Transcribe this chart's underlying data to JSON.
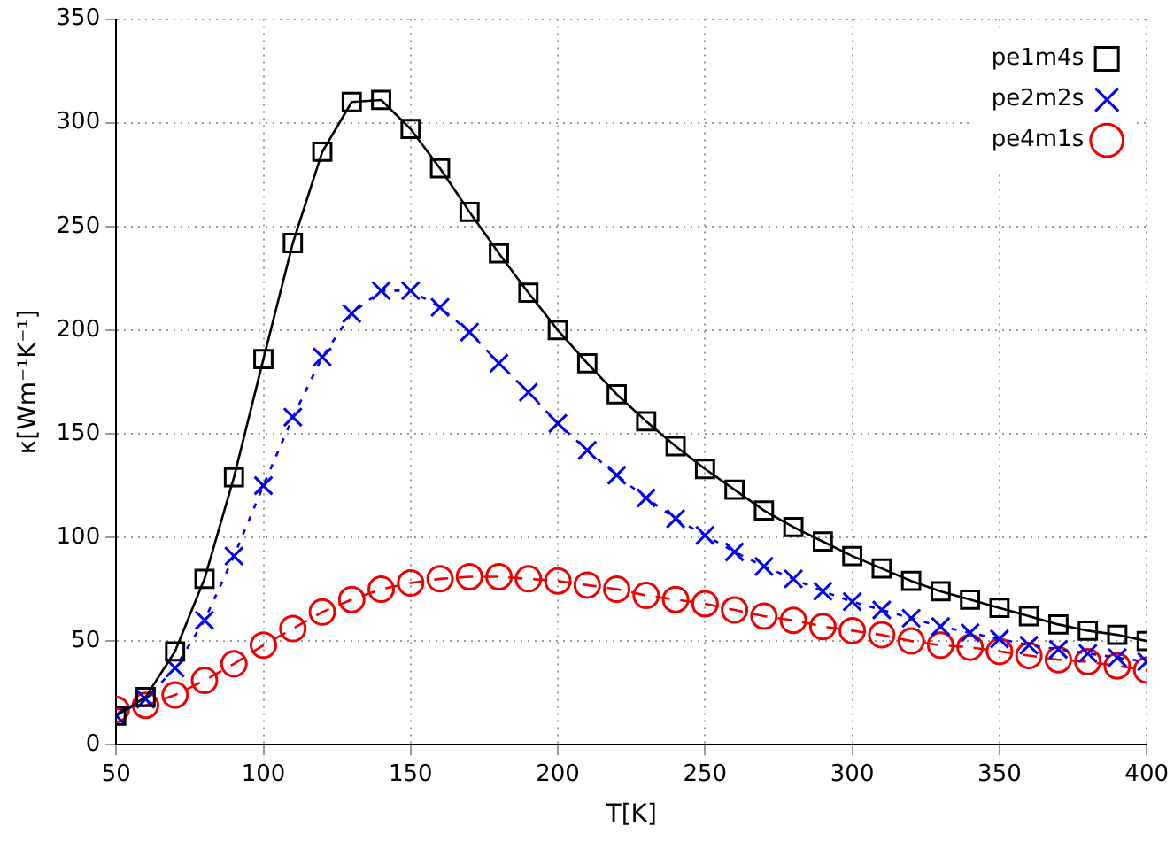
{
  "chart_data": {
    "type": "line",
    "xlabel": "T[K]",
    "ylabel": "κ[Wm⁻¹K⁻¹]",
    "x": [
      50,
      60,
      70,
      80,
      90,
      100,
      110,
      120,
      130,
      140,
      150,
      160,
      170,
      180,
      190,
      200,
      210,
      220,
      230,
      240,
      250,
      260,
      270,
      280,
      290,
      300,
      310,
      320,
      330,
      340,
      350,
      360,
      370,
      380,
      390,
      400
    ],
    "xlim": [
      50,
      400
    ],
    "xticks": [
      50,
      100,
      150,
      200,
      250,
      300,
      350,
      400
    ],
    "ylim": [
      0,
      350
    ],
    "yticks": [
      0,
      50,
      100,
      150,
      200,
      250,
      300,
      350
    ],
    "grid": true,
    "legend": "top right",
    "series": [
      {
        "name": "pe1m4s",
        "color": "#000000",
        "marker": "square",
        "line_style": "solid",
        "values": [
          14,
          23,
          45,
          80,
          129,
          186,
          242,
          286,
          310,
          311,
          297,
          278,
          257,
          237,
          218,
          200,
          184,
          169,
          156,
          144,
          133,
          123,
          113,
          105,
          98,
          91,
          85,
          79,
          74,
          70,
          66,
          62,
          58,
          55,
          53,
          50
        ]
      },
      {
        "name": "pe2m2s",
        "color": "#0000ee",
        "marker": "cross",
        "line_style": "dotted",
        "values": [
          14,
          22,
          37,
          60,
          91,
          125,
          158,
          187,
          208,
          219,
          219,
          211,
          199,
          184,
          170,
          155,
          142,
          130,
          119,
          109,
          101,
          93,
          86,
          80,
          74,
          69,
          65,
          61,
          57,
          54,
          51,
          48,
          46,
          44,
          42,
          40
        ]
      },
      {
        "name": "pe4m1s",
        "color": "#ee0000",
        "marker": "circle",
        "line_style": "dashed",
        "values": [
          17,
          19,
          24,
          31,
          39,
          48,
          56,
          64,
          70,
          75,
          78,
          80,
          81,
          81,
          80,
          79,
          77,
          75,
          72,
          70,
          68,
          65,
          62,
          60,
          57,
          55,
          53,
          50,
          48,
          47,
          45,
          43,
          41,
          40,
          38,
          36
        ]
      }
    ]
  }
}
